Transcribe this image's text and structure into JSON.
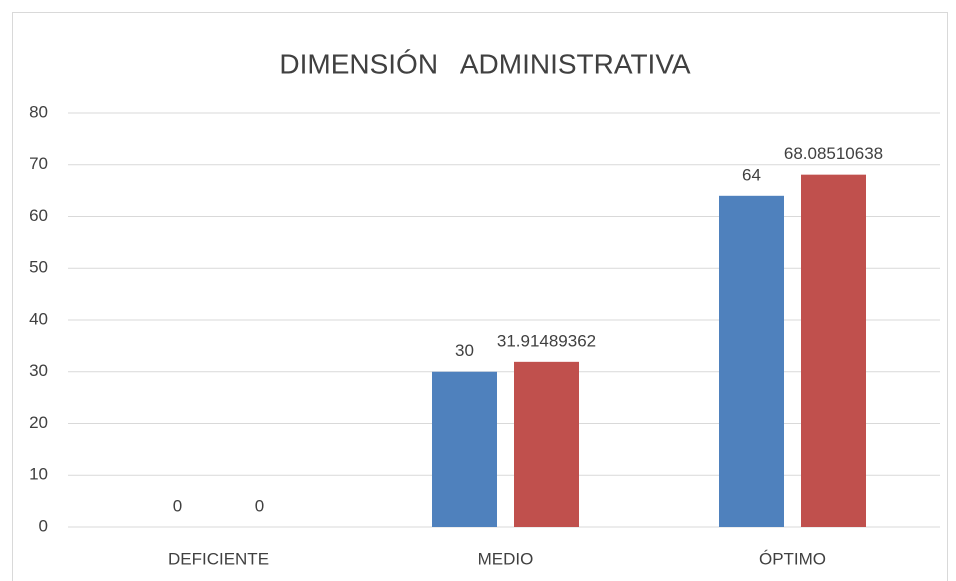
{
  "chart_data": {
    "type": "bar",
    "title": "DIMENSIÓN   ADMINISTRATIVA",
    "categories": [
      "DEFICIENTE",
      "MEDIO",
      "ÓPTIMO"
    ],
    "series": [
      {
        "color": "#4f81bd",
        "values": [
          0,
          30,
          64
        ]
      },
      {
        "color": "#c0504d",
        "values": [
          0,
          31.91489362,
          68.08510638
        ]
      }
    ],
    "ylim": [
      0,
      80
    ],
    "yticks": [
      0,
      10,
      20,
      30,
      40,
      50,
      60,
      70,
      80
    ],
    "grid": true,
    "data_labels": true
  }
}
